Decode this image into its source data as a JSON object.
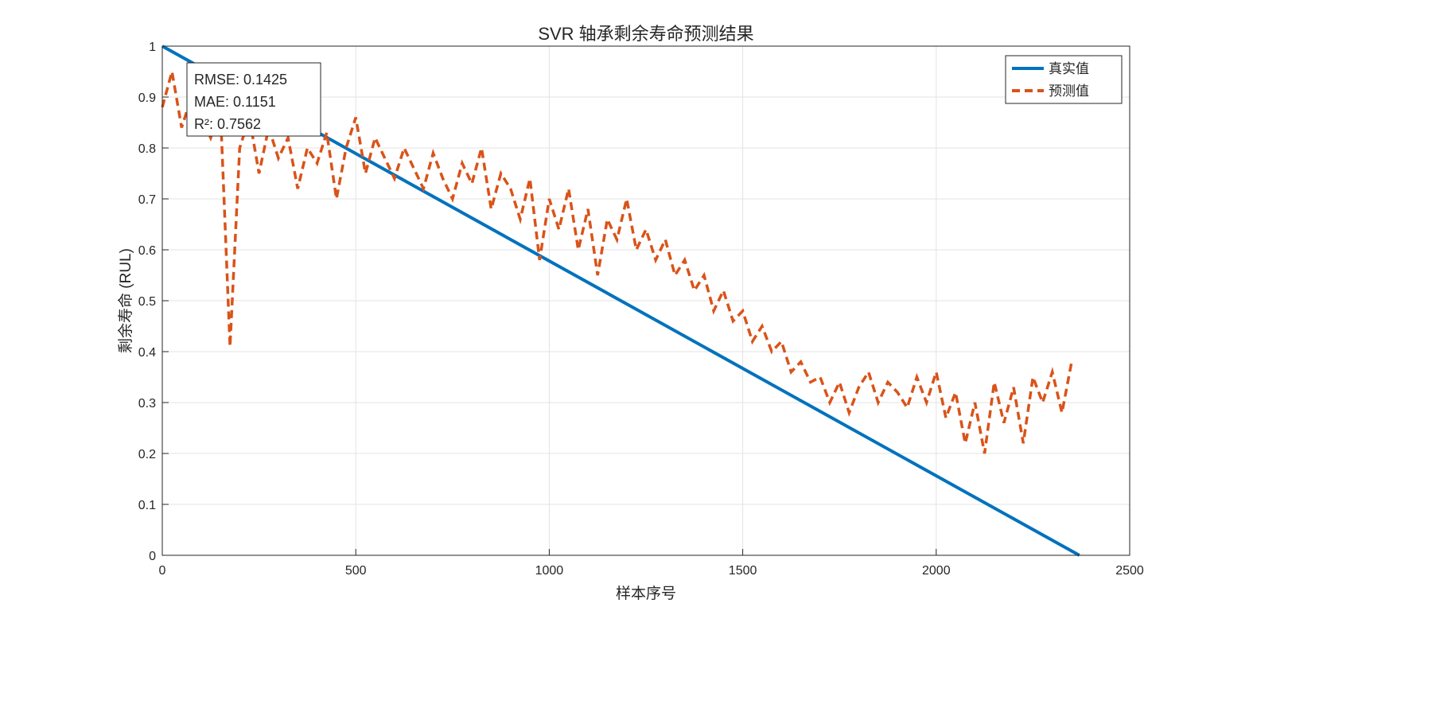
{
  "chart_data": {
    "type": "line",
    "title": "SVR 轴承剩余寿命预测结果",
    "xlabel": "样本序号",
    "ylabel": "剩余寿命 (RUL)",
    "xlim": [
      0,
      2500
    ],
    "ylim": [
      0,
      1
    ],
    "xticks": [
      "0",
      "500",
      "1000",
      "1500",
      "2000",
      "2500"
    ],
    "yticks": [
      "0",
      "0.1",
      "0.2",
      "0.3",
      "0.4",
      "0.5",
      "0.6",
      "0.7",
      "0.8",
      "0.9",
      "1"
    ],
    "grid": true,
    "legend_position": "top-right",
    "annotation": [
      "RMSE: 0.1425",
      "MAE: 0.1151",
      "R²: 0.7562"
    ],
    "series": [
      {
        "name": "真实值",
        "color": "#0072BD",
        "style": "solid",
        "x": [
          0,
          2370
        ],
        "y": [
          1,
          0
        ]
      },
      {
        "name": "预测值",
        "color": "#D95319",
        "style": "dashed",
        "x_step": 25,
        "y": [
          0.88,
          0.95,
          0.84,
          0.9,
          0.86,
          0.82,
          0.88,
          0.41,
          0.8,
          0.86,
          0.75,
          0.84,
          0.78,
          0.82,
          0.72,
          0.8,
          0.77,
          0.83,
          0.7,
          0.8,
          0.86,
          0.75,
          0.82,
          0.78,
          0.74,
          0.8,
          0.76,
          0.72,
          0.79,
          0.74,
          0.7,
          0.77,
          0.73,
          0.8,
          0.68,
          0.75,
          0.72,
          0.66,
          0.74,
          0.58,
          0.7,
          0.64,
          0.72,
          0.6,
          0.68,
          0.55,
          0.66,
          0.62,
          0.7,
          0.6,
          0.64,
          0.58,
          0.62,
          0.55,
          0.58,
          0.52,
          0.55,
          0.48,
          0.52,
          0.46,
          0.48,
          0.42,
          0.45,
          0.4,
          0.42,
          0.36,
          0.38,
          0.34,
          0.35,
          0.3,
          0.34,
          0.28,
          0.33,
          0.36,
          0.3,
          0.34,
          0.32,
          0.29,
          0.35,
          0.3,
          0.36,
          0.27,
          0.32,
          0.22,
          0.3,
          0.2,
          0.34,
          0.26,
          0.33,
          0.22,
          0.35,
          0.3,
          0.36,
          0.28,
          0.38
        ]
      }
    ]
  }
}
